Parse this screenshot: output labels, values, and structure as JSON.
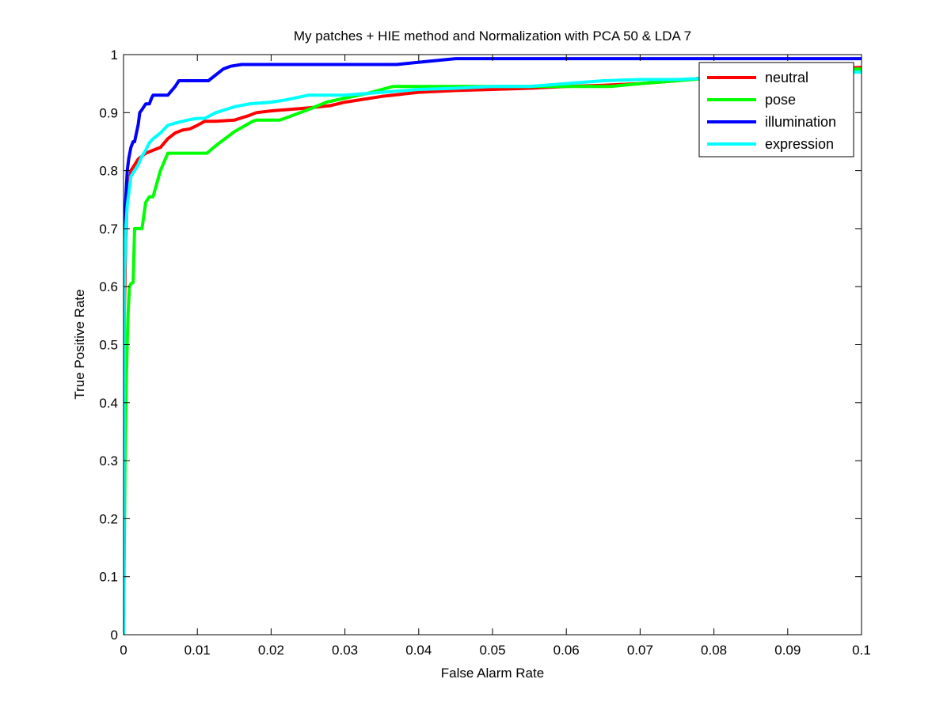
{
  "chart_data": {
    "type": "line",
    "title": "My patches + HIE method and Normalization with PCA 50 & LDA 7",
    "xlabel": "False Alarm Rate",
    "ylabel": "True Positive Rate",
    "xlim": [
      0,
      0.1
    ],
    "ylim": [
      0,
      1
    ],
    "xticks": [
      0,
      0.01,
      0.02,
      0.03,
      0.04,
      0.05,
      0.06,
      0.07,
      0.08,
      0.09,
      0.1
    ],
    "xtick_labels": [
      "0",
      "0.01",
      "0.02",
      "0.03",
      "0.04",
      "0.05",
      "0.06",
      "0.07",
      "0.08",
      "0.09",
      "0.1"
    ],
    "yticks": [
      0,
      0.1,
      0.2,
      0.3,
      0.4,
      0.5,
      0.6,
      0.7,
      0.8,
      0.9,
      1
    ],
    "ytick_labels": [
      "0",
      "0.1",
      "0.2",
      "0.3",
      "0.4",
      "0.5",
      "0.6",
      "0.7",
      "0.8",
      "0.9",
      "1"
    ],
    "grid": false,
    "legend_position": "top-right",
    "series": [
      {
        "name": "neutral",
        "color": "#ff0000",
        "x": [
          0,
          0.0001,
          0.0003,
          0.0005,
          0.0008,
          0.001,
          0.0015,
          0.002,
          0.003,
          0.004,
          0.005,
          0.006,
          0.007,
          0.008,
          0.009,
          0.01,
          0.011,
          0.0125,
          0.015,
          0.017,
          0.018,
          0.02,
          0.022,
          0.025,
          0.028,
          0.03,
          0.035,
          0.04,
          0.045,
          0.05,
          0.055,
          0.06,
          0.065,
          0.07,
          0.075,
          0.08,
          0.085,
          0.09,
          0.095,
          0.1
        ],
        "y": [
          0,
          0.55,
          0.68,
          0.75,
          0.78,
          0.8,
          0.81,
          0.82,
          0.83,
          0.835,
          0.84,
          0.855,
          0.865,
          0.87,
          0.872,
          0.878,
          0.885,
          0.885,
          0.887,
          0.895,
          0.9,
          0.903,
          0.905,
          0.908,
          0.912,
          0.918,
          0.928,
          0.935,
          0.938,
          0.94,
          0.942,
          0.945,
          0.947,
          0.95,
          0.955,
          0.962,
          0.968,
          0.972,
          0.975,
          0.978
        ]
      },
      {
        "name": "pose",
        "color": "#00ff00",
        "x": [
          0,
          0.0002,
          0.0004,
          0.0006,
          0.0008,
          0.001,
          0.0013,
          0.0015,
          0.002,
          0.0025,
          0.003,
          0.0035,
          0.004,
          0.005,
          0.006,
          0.007,
          0.0085,
          0.0113,
          0.0125,
          0.015,
          0.0175,
          0.018,
          0.0212,
          0.025,
          0.0275,
          0.03,
          0.033,
          0.0365,
          0.04,
          0.045,
          0.05,
          0.055,
          0.06,
          0.066,
          0.07,
          0.075,
          0.08,
          0.085,
          0.09,
          0.095,
          0.1
        ],
        "y": [
          0,
          0.3,
          0.45,
          0.55,
          0.6,
          0.605,
          0.607,
          0.7,
          0.7,
          0.7,
          0.745,
          0.755,
          0.755,
          0.8,
          0.83,
          0.83,
          0.83,
          0.83,
          0.843,
          0.867,
          0.885,
          0.887,
          0.887,
          0.905,
          0.918,
          0.925,
          0.933,
          0.945,
          0.945,
          0.945,
          0.945,
          0.945,
          0.945,
          0.945,
          0.95,
          0.955,
          0.96,
          0.965,
          0.97,
          0.975,
          0.975
        ]
      },
      {
        "name": "illumination",
        "color": "#0000ff",
        "x": [
          0,
          0.0001,
          0.0002,
          0.0003,
          0.0005,
          0.0007,
          0.001,
          0.0013,
          0.0015,
          0.002,
          0.0022,
          0.0025,
          0.003,
          0.0035,
          0.0038,
          0.004,
          0.006,
          0.007,
          0.0075,
          0.009,
          0.0115,
          0.0135,
          0.0145,
          0.016,
          0.02,
          0.025,
          0.03,
          0.035,
          0.037,
          0.041,
          0.045,
          0.05,
          0.06,
          0.07,
          0.08,
          0.09,
          0.1
        ],
        "y": [
          0.27,
          0.65,
          0.72,
          0.75,
          0.8,
          0.82,
          0.84,
          0.85,
          0.85,
          0.88,
          0.9,
          0.905,
          0.915,
          0.915,
          0.925,
          0.93,
          0.93,
          0.945,
          0.955,
          0.955,
          0.955,
          0.975,
          0.98,
          0.983,
          0.983,
          0.983,
          0.983,
          0.983,
          0.983,
          0.988,
          0.993,
          0.993,
          0.993,
          0.993,
          0.993,
          0.993,
          0.993
        ]
      },
      {
        "name": "expression",
        "color": "#00ffff",
        "x": [
          0,
          0.0001,
          0.0003,
          0.0005,
          0.0008,
          0.001,
          0.0015,
          0.002,
          0.0025,
          0.003,
          0.0035,
          0.004,
          0.005,
          0.006,
          0.007,
          0.008,
          0.009,
          0.01,
          0.011,
          0.0125,
          0.015,
          0.017,
          0.02,
          0.022,
          0.025,
          0.0275,
          0.03,
          0.035,
          0.04,
          0.045,
          0.05,
          0.055,
          0.06,
          0.065,
          0.07,
          0.075,
          0.08,
          0.085,
          0.09,
          0.095,
          0.1
        ],
        "y": [
          0,
          0.6,
          0.7,
          0.74,
          0.77,
          0.79,
          0.8,
          0.81,
          0.825,
          0.835,
          0.848,
          0.855,
          0.865,
          0.878,
          0.882,
          0.885,
          0.888,
          0.89,
          0.89,
          0.9,
          0.91,
          0.915,
          0.918,
          0.922,
          0.93,
          0.93,
          0.93,
          0.935,
          0.94,
          0.942,
          0.945,
          0.945,
          0.95,
          0.955,
          0.957,
          0.957,
          0.96,
          0.962,
          0.965,
          0.968,
          0.97
        ]
      }
    ]
  }
}
